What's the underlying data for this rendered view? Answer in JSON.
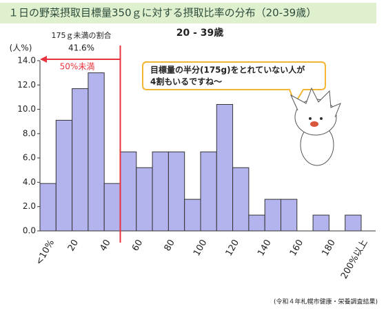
{
  "chart_data": {
    "type": "histogram",
    "title": "１日の野菜摂取目標量350ｇに対する摂取比率の分布（20-39歳）",
    "subtitle": "20 - 39歳",
    "y_label": "(人%)",
    "bins": [
      0,
      10,
      20,
      30,
      40,
      50,
      60,
      70,
      80,
      90,
      100,
      110,
      120,
      130,
      140,
      150,
      160,
      170,
      180,
      190,
      200
    ],
    "values": [
      3.9,
      9.1,
      11.7,
      13.0,
      3.9,
      6.5,
      5.2,
      6.5,
      6.5,
      2.6,
      6.5,
      10.4,
      5.2,
      1.3,
      2.6,
      2.6,
      0,
      1.3,
      0,
      1.3
    ],
    "color": "#b3b3ee",
    "xlim": [
      0,
      200
    ],
    "xticks": [
      {
        "value": 5,
        "label": "<10%"
      },
      20,
      40,
      60,
      80,
      100,
      120,
      140,
      160,
      180,
      {
        "value": 200,
        "label": "200%以上"
      }
    ],
    "ylim": [
      0,
      14
    ],
    "yticks": [
      {
        "value": 0,
        "label": "0.0"
      },
      {
        "value": 2,
        "label": "2.0"
      },
      {
        "value": 4,
        "label": "4.0"
      },
      {
        "value": 6,
        "label": "6.0"
      },
      {
        "value": 8,
        "label": "8.0"
      },
      {
        "value": 10,
        "label": "10.0"
      },
      {
        "value": 12,
        "label": "12.0"
      },
      {
        "value": 14,
        "label": "14.0"
      }
    ],
    "threshold": 50,
    "threshold_color": "#e8323c",
    "annotations": {
      "share_label": "175ｇ未満の割合",
      "share_value": "41.6%",
      "threshold_label": "50%未満",
      "bubble": [
        "目標量の半分(175g)をとれていない人が",
        "4割もいるですね～"
      ]
    },
    "source": "(令和４年札幌市健康・栄養調査結果)"
  }
}
